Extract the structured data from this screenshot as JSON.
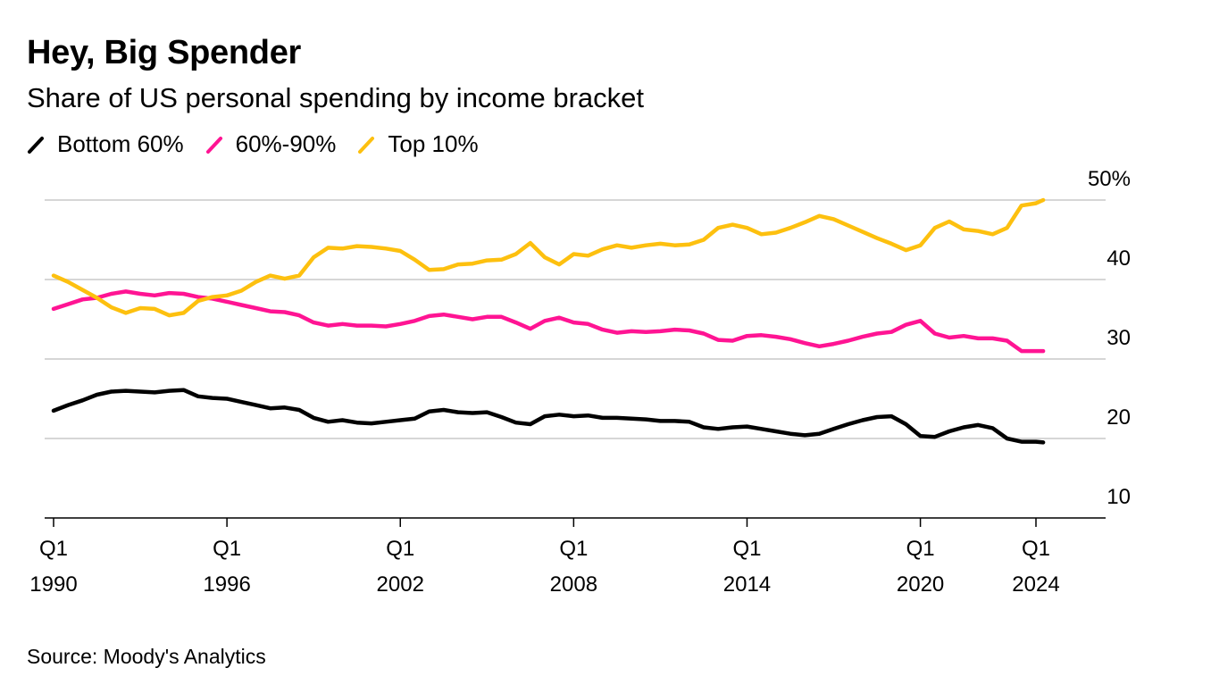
{
  "header": {
    "title": "Hey, Big Spender",
    "subtitle": "Share of US personal spending by income bracket"
  },
  "source": "Source: Moody's Analytics",
  "chart_data": {
    "type": "line",
    "title": "Hey, Big Spender",
    "subtitle": "Share of US personal spending by income bracket",
    "xlabel": "",
    "ylabel": "",
    "y_axis_position": "right",
    "ylim": [
      10,
      50
    ],
    "yticks": [
      10,
      20,
      30,
      40,
      50
    ],
    "ytick_labels": [
      "10",
      "20",
      "30",
      "40",
      "50%"
    ],
    "grid": true,
    "xlim": [
      1989.75,
      2024.5
    ],
    "xticks": [
      {
        "year": 1990,
        "label_top": "Q1",
        "label_bottom": "1990"
      },
      {
        "year": 1996,
        "label_top": "Q1",
        "label_bottom": "1996"
      },
      {
        "year": 2002,
        "label_top": "Q1",
        "label_bottom": "2002"
      },
      {
        "year": 2008,
        "label_top": "Q1",
        "label_bottom": "2008"
      },
      {
        "year": 2014,
        "label_top": "Q1",
        "label_bottom": "2014"
      },
      {
        "year": 2020,
        "label_top": "Q1",
        "label_bottom": "2020"
      },
      {
        "year": 2024,
        "label_top": "Q1",
        "label_bottom": "2024"
      }
    ],
    "legend_position": "top-left",
    "series": [
      {
        "name": "Bottom 60%",
        "color": "#000000",
        "x": [
          1990,
          1990.5,
          1991,
          1991.5,
          1992,
          1992.5,
          1993,
          1993.5,
          1994,
          1994.5,
          1995,
          1995.5,
          1996,
          1996.5,
          1997,
          1997.5,
          1998,
          1998.5,
          1999,
          1999.5,
          2000,
          2000.5,
          2001,
          2001.5,
          2002,
          2002.5,
          2003,
          2003.5,
          2004,
          2004.5,
          2005,
          2005.5,
          2006,
          2006.5,
          2007,
          2007.5,
          2008,
          2008.5,
          2009,
          2009.5,
          2010,
          2010.5,
          2011,
          2011.5,
          2012,
          2012.5,
          2013,
          2013.5,
          2014,
          2014.5,
          2015,
          2015.5,
          2016,
          2016.5,
          2017,
          2017.5,
          2018,
          2018.5,
          2019,
          2019.5,
          2020,
          2020.5,
          2021,
          2021.5,
          2022,
          2022.5,
          2023,
          2023.5,
          2024,
          2024.25
        ],
        "values": [
          23.5,
          24.2,
          24.8,
          25.5,
          25.9,
          26.0,
          25.9,
          25.8,
          26.0,
          26.1,
          25.3,
          25.1,
          25.0,
          24.6,
          24.2,
          23.8,
          23.9,
          23.6,
          22.6,
          22.1,
          22.3,
          22.0,
          21.9,
          22.1,
          22.3,
          22.5,
          23.4,
          23.6,
          23.3,
          23.2,
          23.3,
          22.7,
          22.0,
          21.8,
          22.8,
          23.0,
          22.8,
          22.9,
          22.6,
          22.6,
          22.5,
          22.4,
          22.2,
          22.2,
          22.1,
          21.4,
          21.2,
          21.4,
          21.5,
          21.2,
          20.9,
          20.6,
          20.4,
          20.6,
          21.2,
          21.8,
          22.3,
          22.7,
          22.8,
          21.8,
          20.3,
          20.2,
          20.9,
          21.4,
          21.7,
          21.3,
          20.0,
          19.6,
          19.6,
          19.5
        ]
      },
      {
        "name": "60%-90%",
        "color": "#ff1493",
        "x": [
          1990,
          1990.5,
          1991,
          1991.5,
          1992,
          1992.5,
          1993,
          1993.5,
          1994,
          1994.5,
          1995,
          1995.5,
          1996,
          1996.5,
          1997,
          1997.5,
          1998,
          1998.5,
          1999,
          1999.5,
          2000,
          2000.5,
          2001,
          2001.5,
          2002,
          2002.5,
          2003,
          2003.5,
          2004,
          2004.5,
          2005,
          2005.5,
          2006,
          2006.5,
          2007,
          2007.5,
          2008,
          2008.5,
          2009,
          2009.5,
          2010,
          2010.5,
          2011,
          2011.5,
          2012,
          2012.5,
          2013,
          2013.5,
          2014,
          2014.5,
          2015,
          2015.5,
          2016,
          2016.5,
          2017,
          2017.5,
          2018,
          2018.5,
          2019,
          2019.5,
          2020,
          2020.5,
          2021,
          2021.5,
          2022,
          2022.5,
          2023,
          2023.5,
          2024,
          2024.25
        ],
        "values": [
          36.3,
          36.9,
          37.5,
          37.7,
          38.2,
          38.5,
          38.2,
          38.0,
          38.3,
          38.2,
          37.8,
          37.6,
          37.2,
          36.8,
          36.4,
          36.0,
          35.9,
          35.5,
          34.6,
          34.2,
          34.4,
          34.2,
          34.2,
          34.1,
          34.4,
          34.8,
          35.4,
          35.6,
          35.3,
          35.0,
          35.3,
          35.3,
          34.6,
          33.8,
          34.8,
          35.2,
          34.6,
          34.4,
          33.7,
          33.3,
          33.5,
          33.4,
          33.5,
          33.7,
          33.6,
          33.2,
          32.4,
          32.3,
          32.9,
          33.0,
          32.8,
          32.5,
          32.0,
          31.6,
          31.9,
          32.3,
          32.8,
          33.2,
          33.4,
          34.3,
          34.8,
          33.2,
          32.7,
          32.9,
          32.6,
          32.6,
          32.3,
          31.0,
          31.0,
          31.0
        ]
      },
      {
        "name": "Top 10%",
        "color": "#fdc00f",
        "x": [
          1990,
          1990.5,
          1991,
          1991.5,
          1992,
          1992.5,
          1993,
          1993.5,
          1994,
          1994.5,
          1995,
          1995.5,
          1996,
          1996.5,
          1997,
          1997.5,
          1998,
          1998.5,
          1999,
          1999.5,
          2000,
          2000.5,
          2001,
          2001.5,
          2002,
          2002.5,
          2003,
          2003.5,
          2004,
          2004.5,
          2005,
          2005.5,
          2006,
          2006.5,
          2007,
          2007.5,
          2008,
          2008.5,
          2009,
          2009.5,
          2010,
          2010.5,
          2011,
          2011.5,
          2012,
          2012.5,
          2013,
          2013.5,
          2014,
          2014.5,
          2015,
          2015.5,
          2016,
          2016.5,
          2017,
          2017.5,
          2018,
          2018.5,
          2019,
          2019.5,
          2020,
          2020.5,
          2021,
          2021.5,
          2022,
          2022.5,
          2023,
          2023.5,
          2024,
          2024.25
        ],
        "values": [
          40.5,
          39.7,
          38.7,
          37.7,
          36.5,
          35.8,
          36.4,
          36.3,
          35.5,
          35.8,
          37.3,
          37.8,
          38.0,
          38.6,
          39.7,
          40.5,
          40.1,
          40.5,
          42.8,
          44.0,
          43.9,
          44.2,
          44.1,
          43.9,
          43.6,
          42.5,
          41.2,
          41.3,
          41.9,
          42.0,
          42.4,
          42.5,
          43.2,
          44.6,
          42.8,
          41.9,
          43.2,
          43.0,
          43.8,
          44.3,
          44.0,
          44.3,
          44.5,
          44.3,
          44.4,
          45.0,
          46.5,
          46.9,
          46.5,
          45.7,
          45.9,
          46.5,
          47.2,
          48.0,
          47.6,
          46.8,
          46.0,
          45.2,
          44.5,
          43.7,
          44.3,
          46.5,
          47.3,
          46.3,
          46.1,
          45.7,
          46.5,
          49.3,
          49.6,
          50.0
        ]
      }
    ]
  }
}
